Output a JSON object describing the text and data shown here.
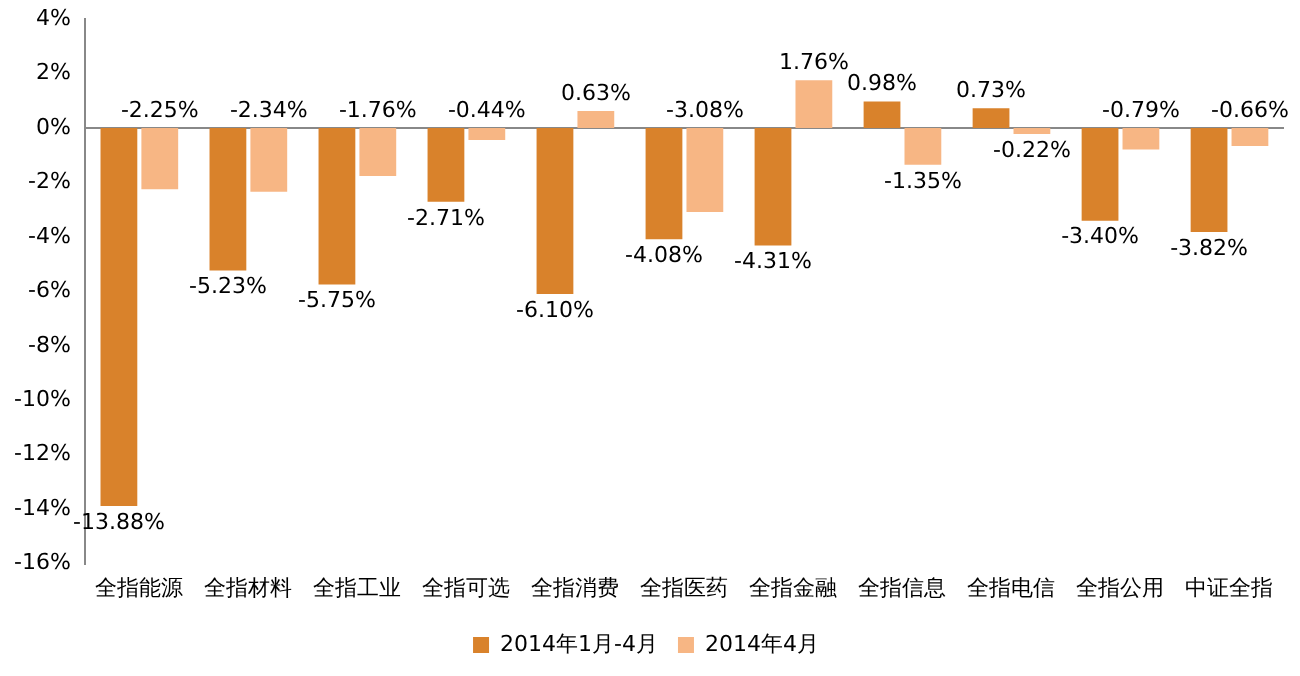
{
  "chart_data": {
    "type": "bar",
    "categories": [
      "全指能源",
      "全指材料",
      "全指工业",
      "全指可选",
      "全指消费",
      "全指医药",
      "全指金融",
      "全指信息",
      "全指电信",
      "全指公用",
      "中证全指"
    ],
    "series": [
      {
        "name": "2014年1月-4月",
        "color": "#d9822b",
        "values": [
          -13.88,
          -5.23,
          -5.75,
          -2.71,
          -6.1,
          -4.08,
          -4.31,
          0.98,
          0.73,
          -3.4,
          -3.82
        ],
        "value_labels": [
          "-13.88%",
          "-5.23%",
          "-5.75%",
          "-2.71%",
          "-6.10%",
          "-4.08%",
          "-4.31%",
          "0.98%",
          "0.73%",
          "-3.40%",
          "-3.82%"
        ]
      },
      {
        "name": "2014年4月",
        "color": "#f7b684",
        "values": [
          -2.25,
          -2.34,
          -1.76,
          -0.44,
          0.63,
          -3.08,
          1.76,
          -1.35,
          -0.22,
          -0.79,
          -0.66
        ],
        "value_labels": [
          "-2.25%",
          "-2.34%",
          "-1.76%",
          "-0.44%",
          "0.63%",
          "-3.08%",
          "1.76%",
          "-1.35%",
          "-0.22%",
          "-0.79%",
          "-0.66%"
        ]
      }
    ],
    "ylim": [
      -16,
      4
    ],
    "yticks": [
      {
        "value": -16,
        "label": "-16%"
      },
      {
        "value": -14,
        "label": "-14%"
      },
      {
        "value": -12,
        "label": "-12%"
      },
      {
        "value": -10,
        "label": "-10%"
      },
      {
        "value": -8,
        "label": "-8%"
      },
      {
        "value": -6,
        "label": "-6%"
      },
      {
        "value": -4,
        "label": "-4%"
      },
      {
        "value": -2,
        "label": "-2%"
      },
      {
        "value": 0,
        "label": "0%"
      },
      {
        "value": 2,
        "label": "2%"
      },
      {
        "value": 4,
        "label": "4%"
      }
    ],
    "ref_lines": [
      {
        "axis": "y",
        "value": 0,
        "color": "#888888"
      }
    ],
    "grid": false,
    "legend": "bottom"
  }
}
